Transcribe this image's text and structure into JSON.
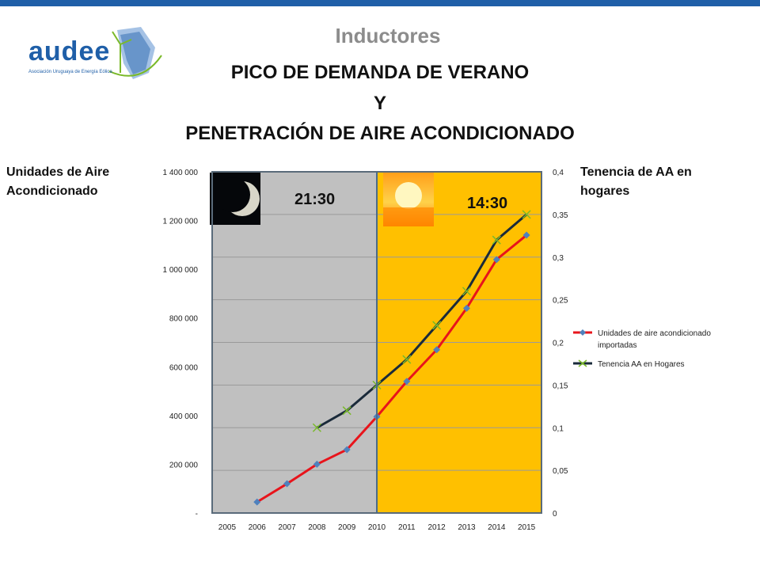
{
  "header": {
    "section_title": "Inductores",
    "logo_name": "audee",
    "logo_tagline": "Asociación Uruguaya de Energía Eólica",
    "brand_color": "#1f5fa8"
  },
  "title_lines": [
    "PICO DE DEMANDA DE VERANO",
    "Y",
    "PENETRACIÓN DE AIRE ACONDICIONADO"
  ],
  "left_axis_title": [
    "Unidades de Aire",
    "Acondicionado"
  ],
  "right_axis_title": [
    "Tenencia de AA en",
    "hogares"
  ],
  "night_label": "21:30",
  "day_label": "14:30",
  "icons": [
    "moon-icon",
    "sun-icon"
  ],
  "chart_data": {
    "type": "line",
    "categories": [
      "2005",
      "2006",
      "2007",
      "2008",
      "2009",
      "2010",
      "2011",
      "2012",
      "2013",
      "2014",
      "2015"
    ],
    "y_left": {
      "ticks": [
        "-",
        "200 000",
        "400 000",
        "600 000",
        "800 000",
        "1 000 000",
        "1 200 000",
        "1 400 000"
      ],
      "lim": [
        0,
        1400000
      ]
    },
    "y_right": {
      "ticks": [
        "0",
        "0,05",
        "0,1",
        "0,15",
        "0,2",
        "0,25",
        "0,3",
        "0,35",
        "0,4"
      ],
      "lim": [
        0,
        0.4
      ]
    },
    "series": [
      {
        "name": "Unidades de aire acondicionado importadas",
        "axis": "left",
        "color": "#e8141b",
        "marker": "diamond",
        "marker_color": "#4f81bd",
        "values": [
          null,
          45000,
          120000,
          200000,
          260000,
          395000,
          540000,
          670000,
          840000,
          1040000,
          1140000
        ]
      },
      {
        "name": "Tenencia AA en Hogares",
        "axis": "right",
        "color": "#1a2a3a",
        "marker": "x",
        "marker_color": "#7ab929",
        "values": [
          null,
          null,
          null,
          0.1,
          0.12,
          0.15,
          0.18,
          0.22,
          0.26,
          0.32,
          0.35
        ]
      }
    ],
    "legend_position": "right",
    "regions": [
      {
        "from": "2005",
        "to": "2010",
        "color": "#c0c0c0"
      },
      {
        "from": "2010",
        "to": "2015",
        "color": "#ffc000"
      }
    ]
  }
}
